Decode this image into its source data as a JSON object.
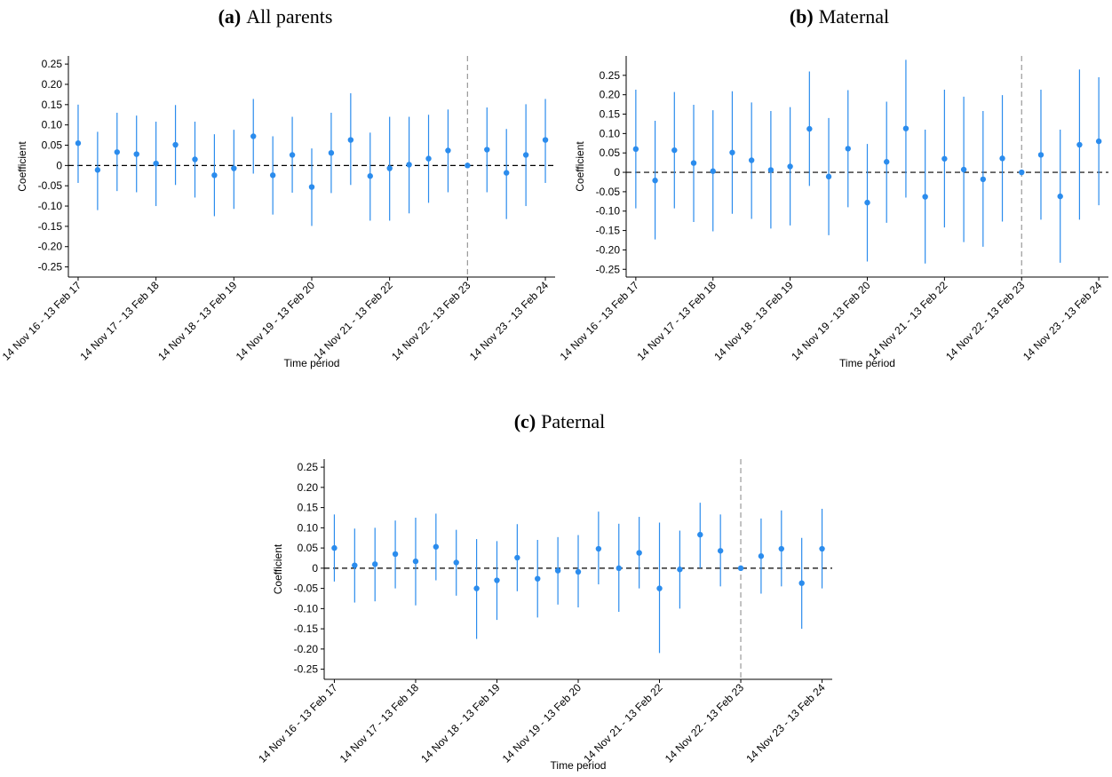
{
  "chart_data": [
    {
      "type": "errorbar",
      "label": "(a)",
      "title": "All parents",
      "y_label": "Coefficient",
      "x_label": "Time period",
      "color": "#2b8ced",
      "categories": [
        "14 Nov 16 - 13 Feb 17",
        null,
        null,
        null,
        "14 Nov 17 - 13 Feb 18",
        null,
        null,
        null,
        "14 Nov 18 - 13 Feb 19",
        null,
        null,
        null,
        "14 Nov 19 - 13 Feb 20",
        null,
        null,
        null,
        "14 Nov 21 - 13 Feb 22",
        null,
        null,
        null,
        "14 Nov 22 - 13 Feb 23",
        null,
        null,
        null,
        "14 Nov 23 - 13 Feb 24"
      ],
      "values": [
        0.055,
        -0.011,
        0.033,
        0.028,
        0.005,
        0.051,
        0.015,
        -0.024,
        -0.007,
        0.072,
        -0.024,
        0.026,
        -0.053,
        0.031,
        0.063,
        -0.026,
        -0.007,
        0.002,
        0.017,
        0.037,
        0,
        0.039,
        -0.018,
        0.026,
        0.063
      ],
      "ci_low": [
        -0.043,
        -0.11,
        -0.063,
        -0.066,
        -0.1,
        -0.048,
        -0.079,
        -0.125,
        -0.107,
        -0.02,
        -0.121,
        -0.067,
        -0.149,
        -0.068,
        -0.048,
        -0.136,
        -0.136,
        -0.118,
        -0.092,
        -0.066,
        null,
        -0.066,
        -0.132,
        -0.1,
        -0.043
      ],
      "ci_high": [
        0.15,
        0.083,
        0.13,
        0.123,
        0.108,
        0.149,
        0.108,
        0.077,
        0.088,
        0.164,
        0.072,
        0.12,
        0.042,
        0.13,
        0.178,
        0.081,
        0.12,
        0.12,
        0.125,
        0.138,
        null,
        0.143,
        0.09,
        0.151,
        0.164
      ],
      "ylim": [
        -0.275,
        0.27
      ],
      "yticks": [
        {
          "value": -0.25,
          "label": "-0.25"
        },
        {
          "value": -0.2,
          "label": "-0.20"
        },
        -0.15,
        {
          "value": -0.1,
          "label": "-0.10"
        },
        -0.05,
        0,
        0.05,
        {
          "value": 0.1,
          "label": "0.10"
        },
        0.15,
        {
          "value": 0.2,
          "label": "0.20"
        },
        0.25
      ],
      "reference_x": 20,
      "reference_y": 0
    },
    {
      "type": "errorbar",
      "label": "(b)",
      "title": "Maternal",
      "y_label": "Coefficient",
      "x_label": "Time period",
      "color": "#2b8ced",
      "categories": [
        "14 Nov 16 - 13 Feb 17",
        null,
        null,
        null,
        "14 Nov 17 - 13 Feb 18",
        null,
        null,
        null,
        "14 Nov 18 - 13 Feb 19",
        null,
        null,
        null,
        "14 Nov 19 - 13 Feb 20",
        null,
        null,
        null,
        "14 Nov 21 - 13 Feb 22",
        null,
        null,
        null,
        "14 Nov 22 - 13 Feb 23",
        null,
        null,
        null,
        "14 Nov 23 - 13 Feb 24"
      ],
      "values": [
        0.06,
        -0.021,
        0.057,
        0.024,
        0.003,
        0.051,
        0.031,
        0.006,
        0.015,
        0.112,
        -0.011,
        0.061,
        -0.078,
        0.027,
        0.113,
        -0.063,
        0.035,
        0.007,
        -0.018,
        0.036,
        0,
        0.045,
        -0.062,
        0.071,
        0.08
      ],
      "ci_low": [
        -0.093,
        -0.173,
        -0.093,
        -0.128,
        -0.152,
        -0.107,
        -0.12,
        -0.145,
        -0.137,
        -0.035,
        -0.162,
        -0.09,
        -0.23,
        -0.13,
        -0.065,
        -0.235,
        -0.142,
        -0.18,
        -0.192,
        -0.127,
        null,
        -0.122,
        -0.233,
        -0.122,
        -0.085
      ],
      "ci_high": [
        0.213,
        0.133,
        0.207,
        0.174,
        0.16,
        0.209,
        0.18,
        0.158,
        0.168,
        0.26,
        0.14,
        0.212,
        0.073,
        0.182,
        0.29,
        0.11,
        0.213,
        0.195,
        0.158,
        0.199,
        null,
        0.213,
        0.11,
        0.265,
        0.245
      ],
      "ylim": [
        -0.27,
        0.3
      ],
      "yticks": [
        {
          "value": -0.25,
          "label": "-0.25"
        },
        {
          "value": -0.2,
          "label": "-0.20"
        },
        -0.15,
        {
          "value": -0.1,
          "label": "-0.10"
        },
        -0.05,
        0,
        0.05,
        {
          "value": 0.1,
          "label": "0.10"
        },
        0.15,
        {
          "value": 0.2,
          "label": "0.20"
        },
        0.25
      ],
      "reference_x": 20,
      "reference_y": 0
    },
    {
      "type": "errorbar",
      "label": "(c)",
      "title": "Paternal",
      "y_label": "Coefficient",
      "x_label": "Time period",
      "color": "#2b8ced",
      "categories": [
        "14 Nov 16 - 13 Feb 17",
        null,
        null,
        null,
        "14 Nov 17 - 13 Feb 18",
        null,
        null,
        null,
        "14 Nov 18 - 13 Feb 19",
        null,
        null,
        null,
        "14 Nov 19 - 13 Feb 20",
        null,
        null,
        null,
        "14 Nov 21 - 13 Feb 22",
        null,
        null,
        null,
        "14 Nov 22 - 13 Feb 23",
        null,
        null,
        null,
        "14 Nov 23 - 13 Feb 24"
      ],
      "values": [
        0.05,
        0.007,
        0.01,
        0.035,
        0.017,
        0.053,
        0.014,
        -0.05,
        -0.03,
        0.026,
        -0.026,
        -0.006,
        -0.009,
        0.048,
        0,
        0.038,
        -0.05,
        -0.003,
        0.083,
        0.043,
        0,
        0.03,
        0.048,
        -0.037,
        0.048
      ],
      "ci_low": [
        -0.033,
        -0.085,
        -0.082,
        -0.05,
        -0.092,
        -0.03,
        -0.068,
        -0.175,
        -0.128,
        -0.057,
        -0.122,
        -0.09,
        -0.097,
        -0.04,
        -0.108,
        -0.05,
        -0.21,
        -0.1,
        0,
        -0.045,
        null,
        -0.063,
        -0.045,
        -0.15,
        -0.05
      ],
      "ci_high": [
        0.133,
        0.098,
        0.1,
        0.118,
        0.125,
        0.135,
        0.095,
        0.072,
        0.067,
        0.109,
        0.07,
        0.077,
        0.082,
        0.14,
        0.11,
        0.127,
        0.113,
        0.093,
        0.162,
        0.133,
        null,
        0.123,
        0.143,
        0.075,
        0.147
      ],
      "ylim": [
        -0.275,
        0.27
      ],
      "yticks": [
        {
          "value": -0.25,
          "label": "-0.25"
        },
        {
          "value": -0.2,
          "label": "-0.20"
        },
        -0.15,
        {
          "value": -0.1,
          "label": "-0.10"
        },
        -0.05,
        0,
        0.05,
        {
          "value": 0.1,
          "label": "0.10"
        },
        0.15,
        {
          "value": 0.2,
          "label": "0.20"
        },
        0.25
      ],
      "reference_x": 20,
      "reference_y": 0
    }
  ]
}
